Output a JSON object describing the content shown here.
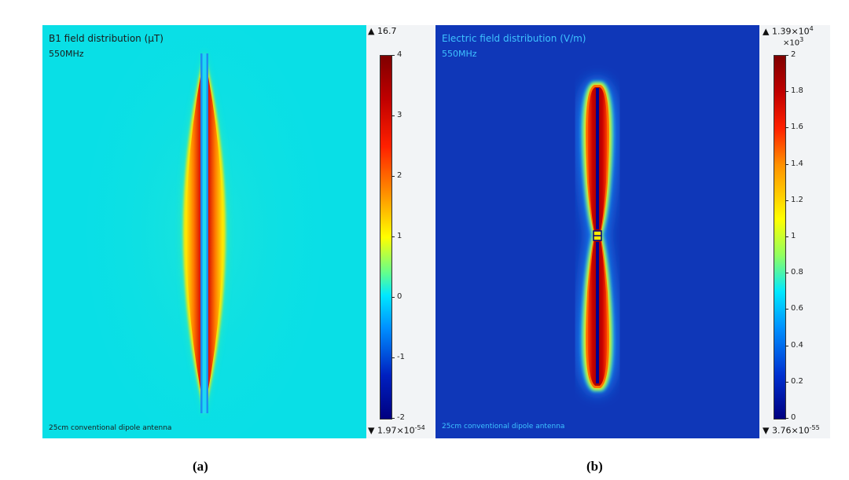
{
  "colors": {
    "left_bg": "#09dfe6",
    "right_bg": "#0f37b8",
    "colorbar_bg": "#f2f4f6",
    "title_left": "#1a1a1a",
    "title_right": "#3ec2ff"
  },
  "panel_a": {
    "title": "B1 field distribution (μT)",
    "frequency": "550MHz",
    "footer": "25cm conventional dipole antenna",
    "caption": "(a)",
    "max_label": "▲ 16.7",
    "min_prefix": "▼ 1.97×10",
    "min_exp": "-54"
  },
  "panel_b": {
    "title": "Electric field distribution (V/m)",
    "frequency": "550MHz",
    "footer": "25cm conventional dipole antenna",
    "caption": "(b)",
    "max_prefix": "▲ 1.39×10",
    "max_exp": "4",
    "multiplier_prefix": "×10",
    "multiplier_exp": "3",
    "min_prefix": "▼ 3.76×10",
    "min_exp": "-55"
  },
  "chart_data": [
    {
      "type": "heatmap",
      "title": "B1 field distribution (μT)",
      "subtitle": "550MHz",
      "annotation": "25cm conventional dipole antenna",
      "colorbar": {
        "min": -2,
        "max": 4,
        "ticks": [
          "4",
          "3",
          "2",
          "1",
          "0",
          "-1",
          "-2"
        ],
        "data_max": "16.7",
        "data_min": "1.97×10^-54"
      },
      "colormap": "rainbow",
      "background_value": 0.3
    },
    {
      "type": "heatmap",
      "title": "Electric field distribution (V/m)",
      "subtitle": "550MHz",
      "annotation": "25cm conventional dipole antenna",
      "colorbar": {
        "min": 0,
        "max": 2,
        "multiplier": "×10^3",
        "ticks": [
          "2",
          "1.8",
          "1.6",
          "1.4",
          "1.2",
          "1",
          "0.8",
          "0.6",
          "0.4",
          "0.2",
          "0"
        ],
        "data_max": "1.39×10^4",
        "data_min": "3.76×10^-55"
      },
      "colormap": "rainbow",
      "background_value": 0.15
    }
  ]
}
